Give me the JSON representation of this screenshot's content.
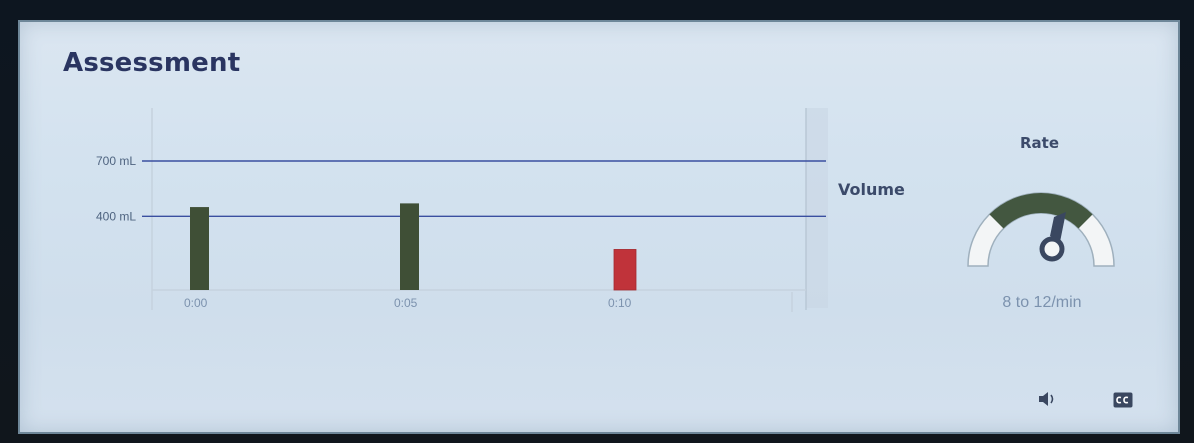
{
  "title": "Assessment",
  "volume_label": "Volume",
  "rate": {
    "title": "Rate",
    "range_text": "8 to 12/min",
    "gauge_colors": {
      "track": "#f3f5f6",
      "track_border": "#9fb0bd",
      "target": "#435740",
      "needle": "#3a4760"
    }
  },
  "icons": {
    "speaker": "speaker-icon",
    "cc": "closed-captions-icon"
  },
  "colors": {
    "title": "#2a3561",
    "reference_line": "#3a4fa0",
    "bar_ok": "#3f4f36",
    "bar_low": "#c0333a",
    "grid": "#c5d2de"
  },
  "chart_data": {
    "type": "bar",
    "ylabel": "",
    "xlabel": "",
    "ylim": [
      0,
      820
    ],
    "reference_lines": [
      {
        "label": "700 mL",
        "value": 700
      },
      {
        "label": "400 mL",
        "value": 400
      }
    ],
    "x_ticks": [
      "0:00",
      "0:05",
      "0:10"
    ],
    "bars": [
      {
        "x": "0:00",
        "value": 450,
        "status": "ok"
      },
      {
        "x": "0:05",
        "value": 470,
        "status": "ok"
      },
      {
        "x": "0:10",
        "value": 220,
        "status": "low"
      }
    ]
  }
}
